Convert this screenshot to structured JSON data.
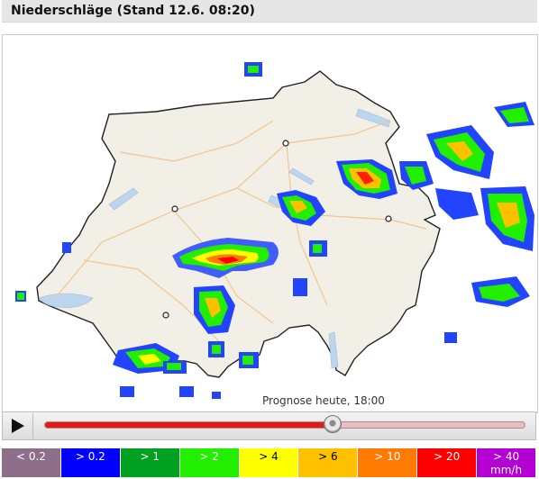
{
  "header": {
    "title": "Niederschläge (Stand 12.6. 08:20)"
  },
  "map": {
    "forecast_label": "Prognose heute, 18:00"
  },
  "player": {
    "play_icon": "play-icon",
    "progress": 0.6
  },
  "legend": [
    {
      "label": "< 0.2",
      "color": "#8d6f8c"
    },
    {
      "label": "> 0.2",
      "color": "#0000ff"
    },
    {
      "label": "> 1",
      "color": "#00a020"
    },
    {
      "label": "> 2",
      "color": "#22ee00"
    },
    {
      "label": "> 4",
      "color": "#ffff00"
    },
    {
      "label": "> 6",
      "color": "#ffc000"
    },
    {
      "label": "> 10",
      "color": "#ff7a00"
    },
    {
      "label": "> 20",
      "color": "#ff0000"
    },
    {
      "label": "> 40",
      "unit": "mm/h",
      "color": "#b400d2"
    }
  ]
}
